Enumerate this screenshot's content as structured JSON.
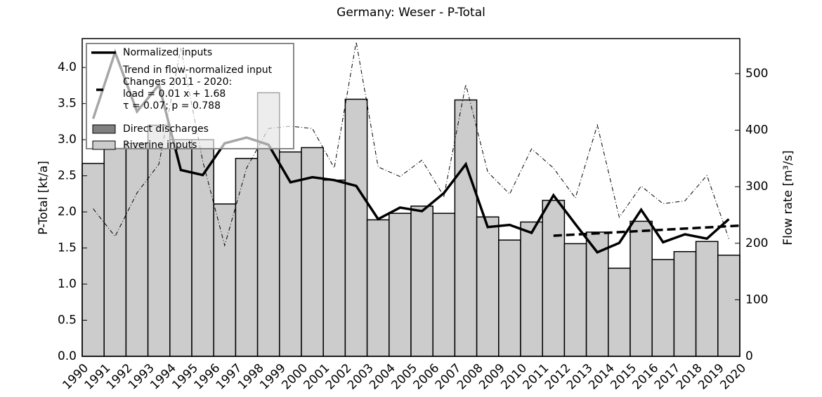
{
  "chart_data": {
    "type": "bar",
    "title": "Germany: Weser - P-Total",
    "y_label": "P-Total [kt/a]",
    "y2_label": "Flow rate [m³/s]",
    "xlim": [
      1990,
      2020
    ],
    "xticks": [
      1990,
      1991,
      1992,
      1993,
      1994,
      1995,
      1996,
      1997,
      1998,
      1999,
      2000,
      2001,
      2002,
      2003,
      2004,
      2005,
      2006,
      2007,
      2008,
      2009,
      2010,
      2011,
      2012,
      2013,
      2014,
      2015,
      2016,
      2017,
      2018,
      2019,
      2020
    ],
    "ylim": [
      0,
      4.4
    ],
    "yticks": [
      {
        "value": 0,
        "label": "0.0"
      },
      0.5,
      {
        "value": 1,
        "label": "1.0"
      },
      1.5,
      {
        "value": 2,
        "label": "2.0"
      },
      2.5,
      {
        "value": 3,
        "label": "3.0"
      },
      3.5,
      {
        "value": 4,
        "label": "4.0"
      }
    ],
    "y2lim": [
      0,
      562
    ],
    "y2ticks": [
      0,
      100,
      200,
      300,
      400,
      500
    ],
    "legend": "upper left",
    "annotations": [
      "Changes 2011 - 2020:",
      "load = 0.01 x + 1.68",
      "τ = 0.07; p = 0.788"
    ],
    "series": [
      {
        "name": "Normalized inputs",
        "type": "line",
        "color": "#000000",
        "style": "solid",
        "x": [
          1990.5,
          1991.5,
          1992.5,
          1993.5,
          1994.5,
          1995.5,
          1996.5,
          1997.5,
          1998.5,
          1999.5,
          2000.5,
          2001.5,
          2002.5,
          2003.5,
          2004.5,
          2005.5,
          2006.5,
          2007.5,
          2008.5,
          2009.5,
          2010.5,
          2011.5,
          2012.5,
          2013.5,
          2014.5,
          2015.5,
          2016.5,
          2017.5,
          2018.5,
          2019.5
        ],
        "values": [
          3.29,
          4.21,
          3.39,
          3.76,
          2.58,
          2.51,
          2.95,
          3.03,
          2.93,
          2.41,
          2.48,
          2.44,
          2.36,
          1.9,
          2.06,
          2.01,
          2.26,
          2.66,
          1.79,
          1.82,
          1.71,
          2.23,
          1.83,
          1.44,
          1.57,
          2.03,
          1.58,
          1.69,
          1.63,
          1.9
        ]
      },
      {
        "name": "Trend in flow-normalized input",
        "type": "line",
        "color": "#000000",
        "style": "dashed",
        "x": [
          2011.5,
          2020
        ],
        "values": [
          1.67,
          1.81
        ]
      },
      {
        "name": "Direct discharges",
        "type": "bar",
        "color": "#808080"
      },
      {
        "name": "Riverine inputs",
        "type": "bar",
        "color": "#cccccc",
        "x": [
          1990,
          1991,
          1992,
          1993,
          1994,
          1995,
          1996,
          1997,
          1998,
          1999,
          2000,
          2001,
          2002,
          2003,
          2004,
          2005,
          2006,
          2007,
          2008,
          2009,
          2010,
          2011,
          2012,
          2013,
          2014,
          2015,
          2016,
          2017,
          2018,
          2019
        ],
        "values": [
          2.67,
          2.88,
          2.95,
          3.2,
          3.0,
          3.0,
          2.11,
          2.74,
          3.65,
          2.83,
          2.89,
          2.44,
          3.56,
          1.89,
          1.98,
          2.08,
          1.98,
          3.55,
          1.93,
          1.61,
          1.86,
          2.16,
          1.56,
          1.72,
          1.22,
          1.87,
          1.34,
          1.45,
          1.59,
          1.4
        ]
      },
      {
        "type": "line",
        "axis": "y2",
        "color": "#000000",
        "style": "dashdot",
        "x": [
          1990.5,
          1991.5,
          1992.5,
          1993.5,
          1994.5,
          1995.5,
          1996.5,
          1997.5,
          1998.5,
          1999.5,
          2000.5,
          2001.5,
          2002.5,
          2003.5,
          2004.5,
          2005.5,
          2006.5,
          2007.5,
          2008.5,
          2009.5,
          2010.5,
          2011.5,
          2012.5,
          2013.5,
          2014.5,
          2015.5,
          2016.5,
          2017.5,
          2018.5,
          2019.5
        ],
        "values": [
          261,
          212,
          289,
          340,
          545,
          345,
          196,
          333,
          403,
          407,
          403,
          333,
          556,
          335,
          318,
          347,
          283,
          481,
          326,
          287,
          367,
          333,
          280,
          409,
          246,
          301,
          270,
          275,
          320,
          208
        ]
      }
    ]
  }
}
